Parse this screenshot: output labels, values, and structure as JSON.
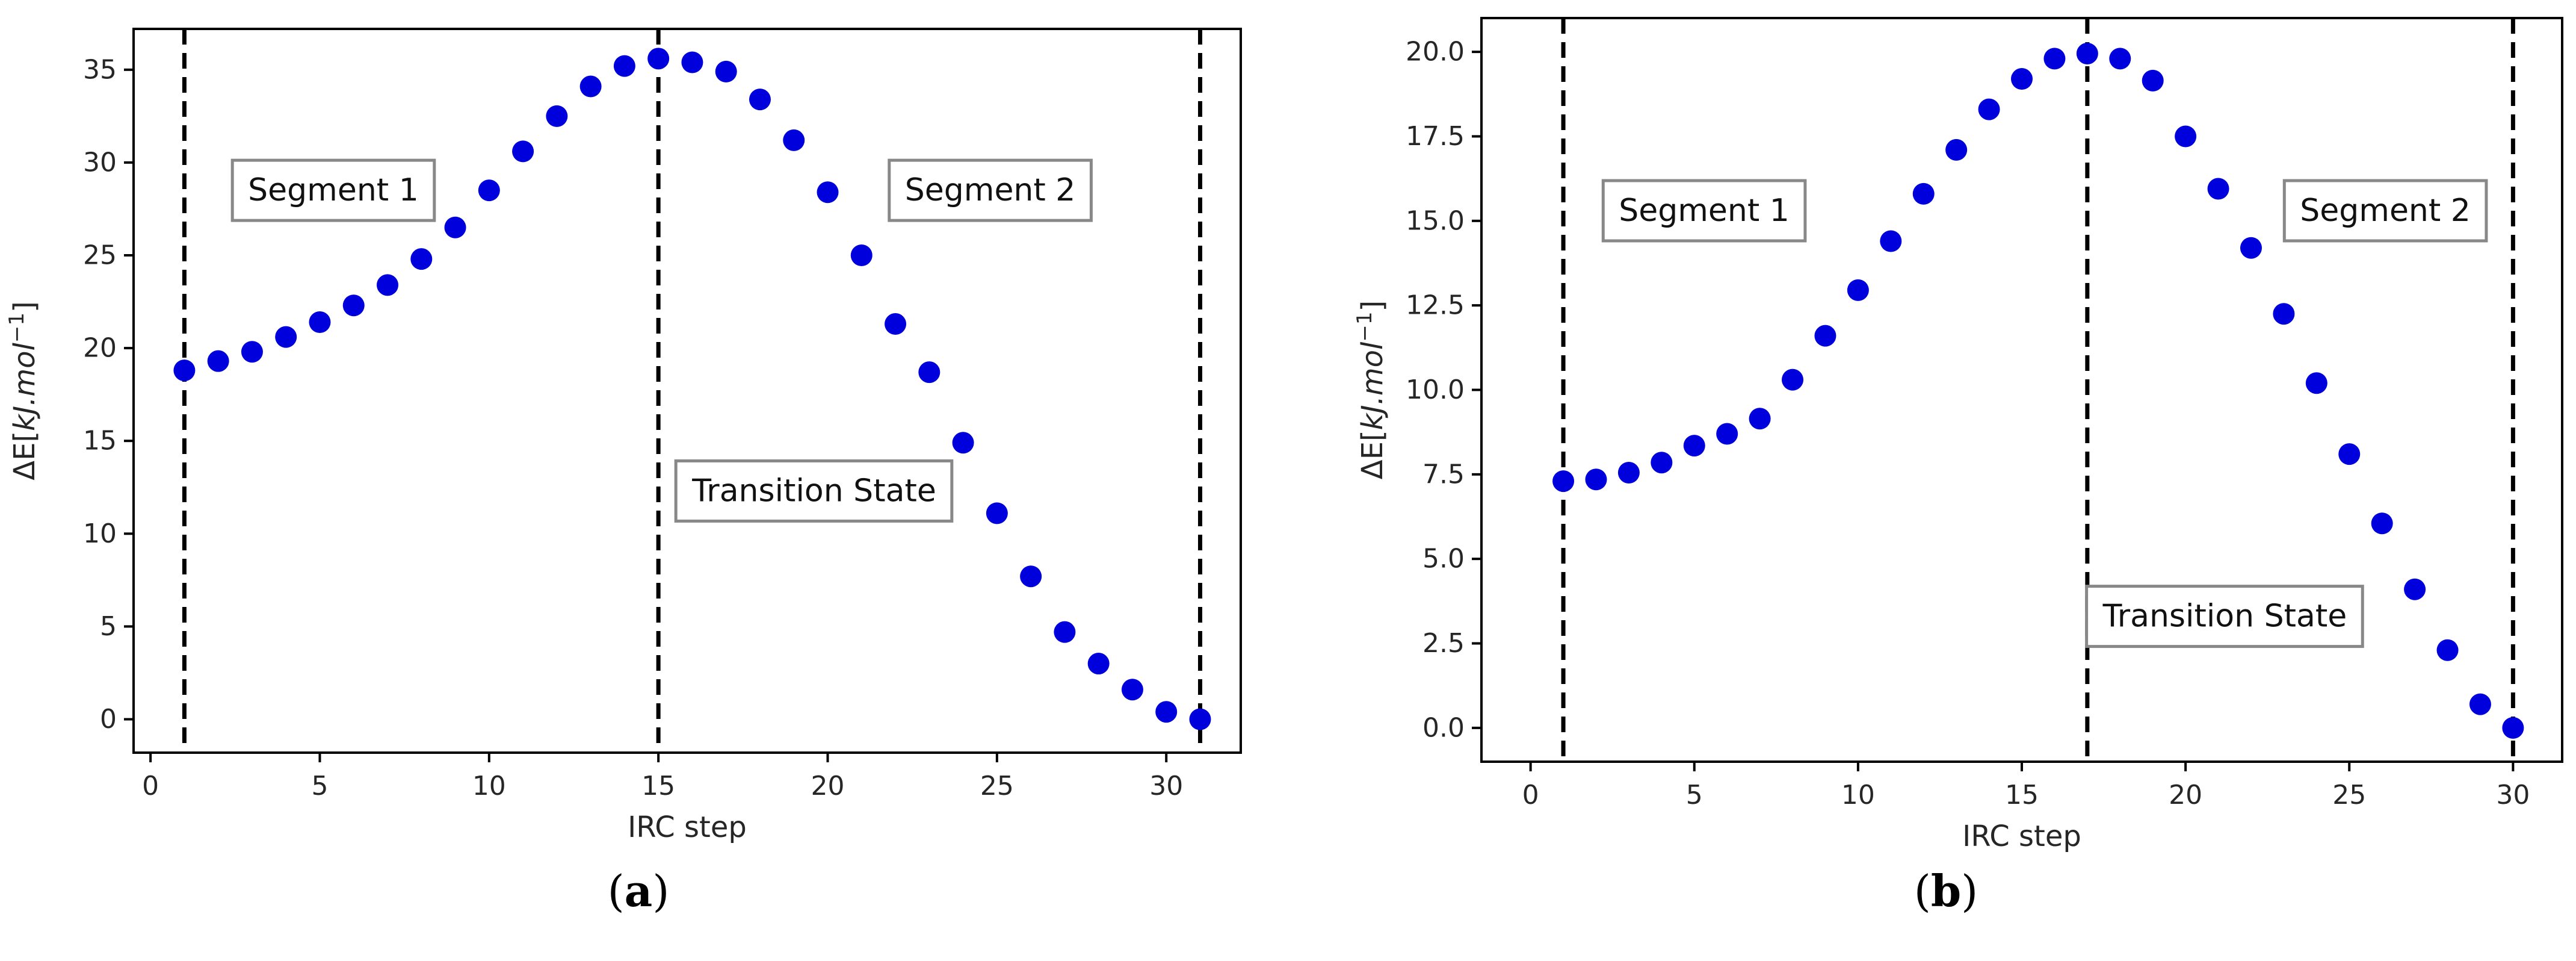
{
  "figure": {
    "panels": [
      {
        "caption_letter": "a",
        "chart_data": {
          "type": "scatter",
          "title": "",
          "xlabel": "IRC step",
          "ylabel": "ΔE[kJ.mol⁻¹]",
          "ylabel_parts": {
            "prefix": "ΔE[",
            "unit": "kJ.mol",
            "sup": "−1",
            "suffix": "]"
          },
          "xlim": [
            -0.5,
            32.2
          ],
          "ylim": [
            -1.8,
            37.2
          ],
          "xticks": [
            0,
            5,
            10,
            15,
            20,
            25,
            30
          ],
          "yticks": [
            0,
            5,
            10,
            15,
            20,
            25,
            30,
            35
          ],
          "xtick_labels": [
            "0",
            "5",
            "10",
            "15",
            "20",
            "25",
            "30"
          ],
          "ytick_labels": [
            "0",
            "5",
            "10",
            "15",
            "20",
            "25",
            "30",
            "35"
          ],
          "marker_color": "#0000dd",
          "series": [
            {
              "name": "energy",
              "x": [
                1,
                2,
                3,
                4,
                5,
                6,
                7,
                8,
                9,
                10,
                11,
                12,
                13,
                14,
                15,
                16,
                17,
                18,
                19,
                20,
                21,
                22,
                23,
                24,
                25,
                26,
                27,
                28,
                29,
                30,
                31
              ],
              "y": [
                18.8,
                19.3,
                19.8,
                20.6,
                21.4,
                22.3,
                23.4,
                24.8,
                26.5,
                28.5,
                30.6,
                32.5,
                34.1,
                35.2,
                35.6,
                35.4,
                34.9,
                33.4,
                31.2,
                28.4,
                25.0,
                21.3,
                18.7,
                14.9,
                11.1,
                7.7,
                4.7,
                3.0,
                1.6,
                0.4,
                0.0
              ]
            }
          ],
          "vlines": [
            1,
            15,
            31
          ],
          "annotations": [
            {
              "text": "Segment 1",
              "x": 5.4,
              "y": 28.5
            },
            {
              "text": "Segment 2",
              "x": 24.8,
              "y": 28.5
            },
            {
              "text": "Transition State",
              "x": 19.6,
              "y": 12.3
            }
          ]
        }
      },
      {
        "caption_letter": "b",
        "chart_data": {
          "type": "scatter",
          "title": "",
          "xlabel": "IRC step",
          "ylabel": "ΔE[kJ.mol⁻¹]",
          "ylabel_parts": {
            "prefix": "ΔE[",
            "unit": "kJ.mol",
            "sup": "−1",
            "suffix": "]"
          },
          "xlim": [
            -1.5,
            31.5
          ],
          "ylim": [
            -1.0,
            21.0
          ],
          "xticks": [
            0,
            5,
            10,
            15,
            20,
            25,
            30
          ],
          "yticks": [
            0.0,
            2.5,
            5.0,
            7.5,
            10.0,
            12.5,
            15.0,
            17.5,
            20.0
          ],
          "xtick_labels": [
            "0",
            "5",
            "10",
            "15",
            "20",
            "25",
            "30"
          ],
          "ytick_labels": [
            "0.0",
            "2.5",
            "5.0",
            "7.5",
            "10.0",
            "12.5",
            "15.0",
            "17.5",
            "20.0"
          ],
          "marker_color": "#0000dd",
          "series": [
            {
              "name": "energy",
              "x": [
                1,
                2,
                3,
                4,
                5,
                6,
                7,
                8,
                9,
                10,
                11,
                12,
                13,
                14,
                15,
                16,
                17,
                18,
                19,
                20,
                21,
                22,
                23,
                24,
                25,
                26,
                27,
                28,
                29,
                30
              ],
              "y": [
                7.3,
                7.35,
                7.55,
                7.85,
                8.35,
                8.7,
                9.15,
                10.3,
                11.6,
                12.95,
                14.4,
                15.8,
                17.1,
                18.3,
                19.2,
                19.8,
                19.95,
                19.8,
                19.15,
                17.5,
                15.95,
                14.2,
                12.25,
                10.2,
                8.1,
                6.05,
                4.1,
                2.3,
                0.7,
                0.0
              ]
            }
          ],
          "vlines": [
            1,
            17,
            30
          ],
          "annotations": [
            {
              "text": "Segment 1",
              "x": 5.3,
              "y": 15.3
            },
            {
              "text": "Segment 2",
              "x": 26.1,
              "y": 15.3
            },
            {
              "text": "Transition State",
              "x": 21.2,
              "y": 3.3
            }
          ]
        }
      }
    ]
  }
}
